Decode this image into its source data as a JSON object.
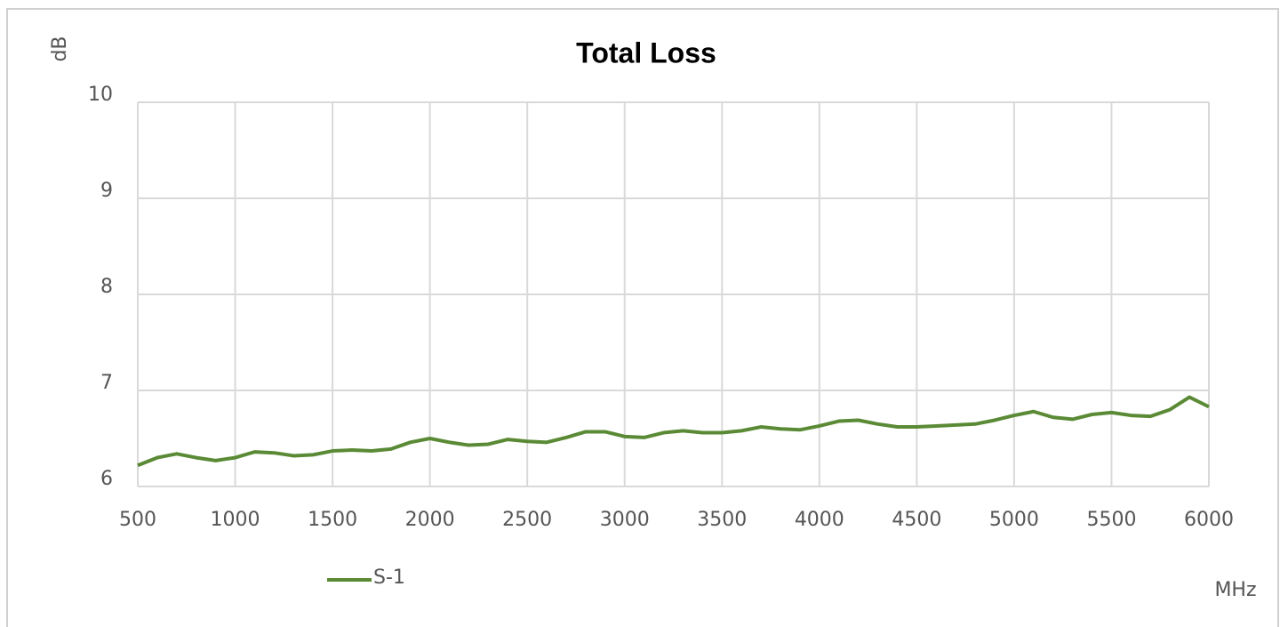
{
  "chart_data": {
    "type": "line",
    "title": "Total Loss",
    "y_label": "dB",
    "x_label": "MHz",
    "x": [
      500,
      600,
      700,
      800,
      900,
      1000,
      1100,
      1200,
      1300,
      1400,
      1500,
      1600,
      1700,
      1800,
      1900,
      2000,
      2100,
      2200,
      2300,
      2400,
      2500,
      2600,
      2700,
      2800,
      2900,
      3000,
      3100,
      3200,
      3300,
      3400,
      3500,
      3600,
      3700,
      3800,
      3900,
      4000,
      4100,
      4200,
      4300,
      4400,
      4500,
      4600,
      4700,
      4800,
      4900,
      5000,
      5100,
      5200,
      5300,
      5400,
      5500,
      5600,
      5700,
      5800,
      5900,
      6000
    ],
    "series": [
      {
        "name": "S-1",
        "color": "#5a8a35",
        "values": [
          6.22,
          6.3,
          6.34,
          6.3,
          6.27,
          6.3,
          6.36,
          6.35,
          6.32,
          6.33,
          6.37,
          6.38,
          6.37,
          6.39,
          6.46,
          6.5,
          6.46,
          6.43,
          6.44,
          6.49,
          6.47,
          6.46,
          6.51,
          6.57,
          6.57,
          6.52,
          6.51,
          6.56,
          6.58,
          6.56,
          6.56,
          6.58,
          6.62,
          6.6,
          6.59,
          6.63,
          6.68,
          6.69,
          6.65,
          6.62,
          6.62,
          6.63,
          6.64,
          6.65,
          6.69,
          6.74,
          6.78,
          6.72,
          6.7,
          6.75,
          6.77,
          6.74,
          6.73,
          6.8,
          6.93,
          6.83
        ]
      }
    ],
    "xlim": [
      500,
      6000
    ],
    "xticks": [
      500,
      1000,
      1500,
      2000,
      2500,
      3000,
      3500,
      4000,
      4500,
      5000,
      5500,
      6000
    ],
    "ylim": [
      6,
      10
    ],
    "yticks": [
      6,
      7,
      8,
      9,
      10
    ],
    "grid": true,
    "legend": "bottom-left"
  }
}
